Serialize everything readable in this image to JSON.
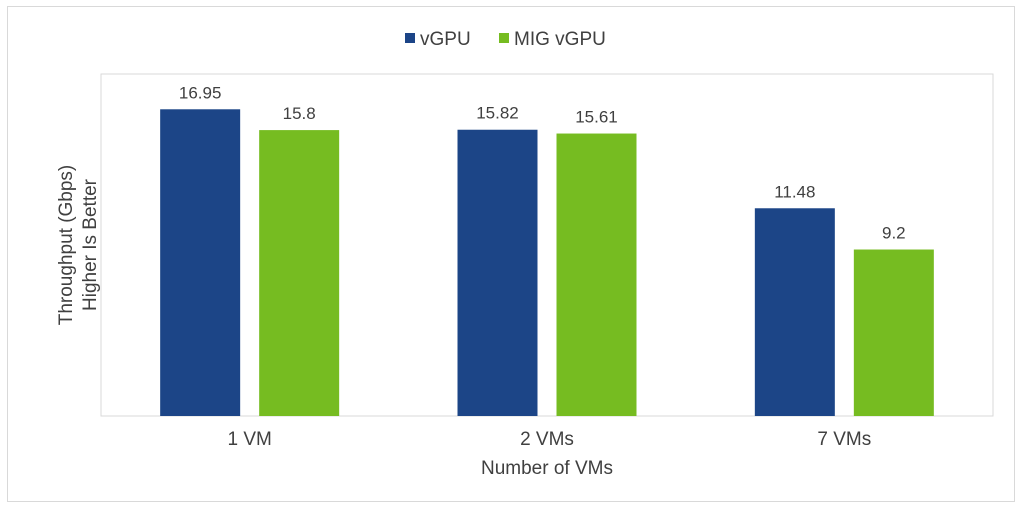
{
  "chart_data": {
    "type": "bar",
    "categories": [
      "1 VM",
      "2 VMs",
      "7 VMs"
    ],
    "series": [
      {
        "name": "vGPU",
        "color": "#1c4587",
        "values": [
          16.95,
          15.82,
          11.48
        ],
        "labels": [
          "16.95",
          "15.82",
          "11.48"
        ]
      },
      {
        "name": "MIG vGPU",
        "color": "#76bc21",
        "values": [
          15.8,
          15.61,
          9.2
        ],
        "labels": [
          "15.8",
          "15.61",
          "9.2"
        ]
      }
    ],
    "title": "",
    "xlabel": "Number of VMs",
    "ylabel_lines": [
      "Throughput (Gbps)",
      "Higher Is Better"
    ],
    "ylim": [
      0,
      18.9
    ],
    "grid": false,
    "legend_position": "top-center",
    "border_color": "#d9d9d9",
    "text_color": "#404040"
  }
}
